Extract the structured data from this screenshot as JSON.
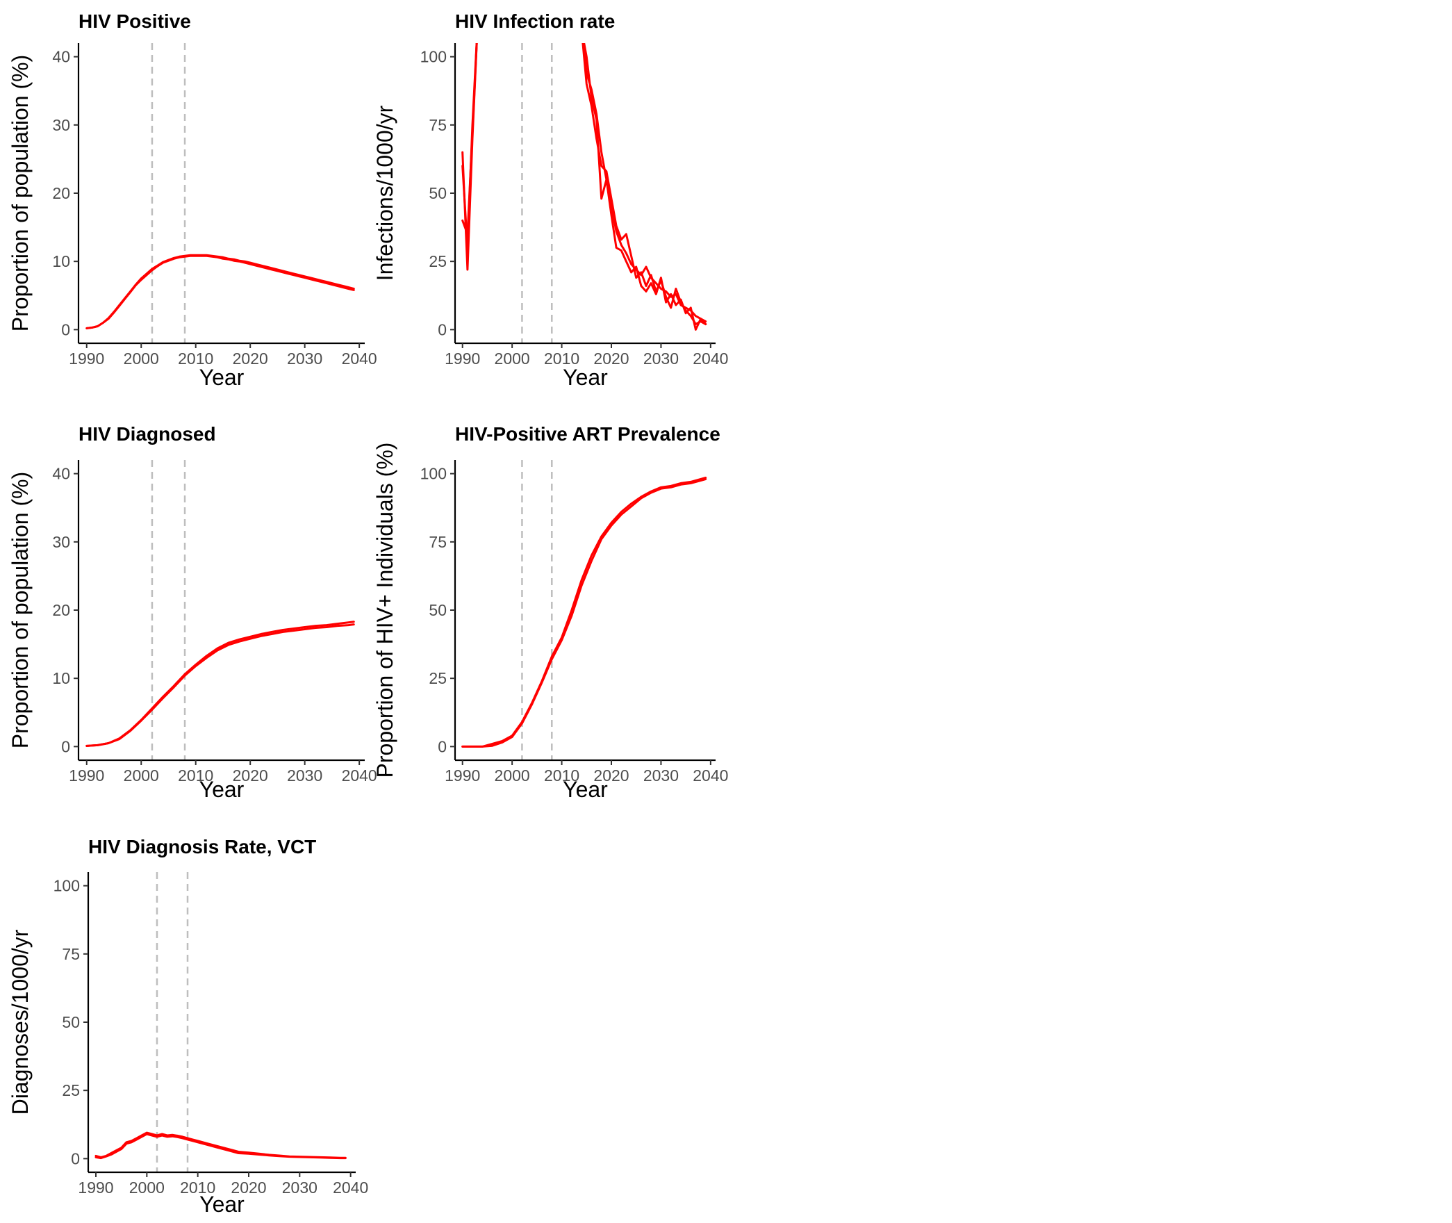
{
  "chart_data": [
    {
      "type": "line",
      "title": "HIV Positive",
      "xlabel": "Year",
      "ylabel": "Proportion of population (%)",
      "xlim": [
        1988.5,
        2041
      ],
      "ylim": [
        -2,
        42
      ],
      "xticks": [
        1990,
        2000,
        2010,
        2020,
        2030,
        2040
      ],
      "yticks": [
        0,
        10,
        20,
        30,
        40
      ],
      "vlines": [
        2002,
        2008
      ],
      "grid": false,
      "legend": "none",
      "color": "#ff0000",
      "series": [
        {
          "x": [
            1990,
            1991,
            1992,
            1993,
            1994,
            1995,
            1996,
            1997,
            1998,
            1999,
            2000,
            2001,
            2002,
            2003,
            2004,
            2005,
            2006,
            2007,
            2008,
            2009,
            2010,
            2011,
            2012,
            2013,
            2014,
            2015,
            2016,
            2017,
            2018,
            2019,
            2020,
            2021,
            2022,
            2023,
            2024,
            2025,
            2026,
            2027,
            2028,
            2029,
            2030,
            2031,
            2032,
            2033,
            2034,
            2035,
            2036,
            2037,
            2038,
            2039
          ],
          "y": [
            0.2,
            0.3,
            0.5,
            1.0,
            1.7,
            2.6,
            3.6,
            4.6,
            5.6,
            6.6,
            7.5,
            8.2,
            8.9,
            9.4,
            9.9,
            10.2,
            10.5,
            10.7,
            10.8,
            10.9,
            10.9,
            10.9,
            10.9,
            10.8,
            10.7,
            10.6,
            10.4,
            10.3,
            10.1,
            10.0,
            9.8,
            9.6,
            9.4,
            9.2,
            9.0,
            8.8,
            8.6,
            8.4,
            8.2,
            8.0,
            7.8,
            7.6,
            7.4,
            7.2,
            7.0,
            6.8,
            6.6,
            6.4,
            6.2,
            6.0
          ]
        },
        {
          "x": [
            1990,
            1991,
            1992,
            1993,
            1994,
            1995,
            1996,
            1997,
            1998,
            1999,
            2000,
            2001,
            2002,
            2003,
            2004,
            2005,
            2006,
            2007,
            2008,
            2009,
            2010,
            2011,
            2012,
            2013,
            2014,
            2015,
            2016,
            2017,
            2018,
            2019,
            2020,
            2021,
            2022,
            2023,
            2024,
            2025,
            2026,
            2027,
            2028,
            2029,
            2030,
            2031,
            2032,
            2033,
            2034,
            2035,
            2036,
            2037,
            2038,
            2039
          ],
          "y": [
            0.2,
            0.3,
            0.5,
            1.0,
            1.6,
            2.5,
            3.5,
            4.5,
            5.5,
            6.5,
            7.3,
            8.0,
            8.7,
            9.3,
            9.8,
            10.1,
            10.4,
            10.6,
            10.7,
            10.8,
            10.8,
            10.8,
            10.8,
            10.7,
            10.6,
            10.4,
            10.3,
            10.1,
            10.0,
            9.8,
            9.6,
            9.4,
            9.2,
            9.0,
            8.8,
            8.6,
            8.4,
            8.2,
            8.0,
            7.8,
            7.6,
            7.4,
            7.2,
            7.0,
            6.8,
            6.6,
            6.4,
            6.2,
            6.0,
            5.8
          ]
        }
      ]
    },
    {
      "type": "line",
      "title": "HIV Infection rate",
      "xlabel": "Year",
      "ylabel": "Infections/1000/yr",
      "xlim": [
        1988.5,
        2041
      ],
      "ylim": [
        -5,
        105
      ],
      "xticks": [
        1990,
        2000,
        2010,
        2020,
        2030,
        2040
      ],
      "yticks": [
        0,
        25,
        50,
        75,
        100
      ],
      "vlines": [
        2002,
        2008
      ],
      "grid": false,
      "legend": "none",
      "color": "#ff0000",
      "series": [
        {
          "x": [
            1990,
            1991,
            1992,
            1993,
            2014,
            2015,
            2016,
            2017,
            2018,
            2019,
            2020,
            2021,
            2022,
            2023,
            2024,
            2025,
            2026,
            2027,
            2028,
            2029,
            2030,
            2031,
            2032,
            2033,
            2034,
            2035,
            2036,
            2037,
            2038,
            2039
          ],
          "y": [
            65,
            22,
            70,
            110,
            110,
            94,
            88,
            79,
            65,
            55,
            45,
            36,
            31,
            28,
            24,
            22,
            20,
            23,
            19,
            17,
            15,
            14,
            12,
            13,
            9,
            8,
            7,
            5,
            4,
            3
          ]
        },
        {
          "x": [
            1990,
            1991,
            1992,
            1993,
            2014,
            2015,
            2016,
            2017,
            2018,
            2019,
            2020,
            2021,
            2022,
            2023,
            2024,
            2025,
            2026,
            2027,
            2028,
            2029,
            2030,
            2031,
            2032,
            2033,
            2034,
            2035,
            2036,
            2037,
            2038,
            2039
          ],
          "y": [
            60,
            30,
            75,
            110,
            110,
            90,
            82,
            70,
            60,
            58,
            48,
            38,
            33,
            35,
            27,
            19,
            21,
            16,
            20,
            14,
            18,
            12,
            8,
            15,
            10,
            7,
            5,
            2,
            3,
            2
          ]
        },
        {
          "x": [
            1990,
            1991,
            1992,
            1993,
            2014,
            2015,
            2016,
            2017,
            2018,
            2019,
            2020,
            2021,
            2022,
            2023,
            2024,
            2025,
            2026,
            2027,
            2028,
            2029,
            2030,
            2031,
            2032,
            2033,
            2034,
            2035,
            2036,
            2037,
            2038,
            2039
          ],
          "y": [
            40,
            35,
            72,
            110,
            110,
            100,
            85,
            77,
            48,
            55,
            42,
            30,
            29,
            25,
            21,
            23,
            16,
            14,
            17,
            13,
            19,
            10,
            13,
            9,
            11,
            6,
            8,
            0,
            4,
            2
          ]
        }
      ]
    },
    {
      "type": "line",
      "title": "HIV Diagnosed",
      "xlabel": "Year",
      "ylabel": "Proportion of population (%)",
      "xlim": [
        1988.5,
        2041
      ],
      "ylim": [
        -2,
        42
      ],
      "xticks": [
        1990,
        2000,
        2010,
        2020,
        2030,
        2040
      ],
      "yticks": [
        0,
        10,
        20,
        30,
        40
      ],
      "vlines": [
        2002,
        2008
      ],
      "grid": false,
      "legend": "none",
      "color": "#ff0000",
      "series": [
        {
          "x": [
            1990,
            1992,
            1994,
            1996,
            1998,
            2000,
            2002,
            2004,
            2006,
            2008,
            2010,
            2012,
            2014,
            2016,
            2018,
            2020,
            2022,
            2024,
            2026,
            2028,
            2030,
            2032,
            2034,
            2036,
            2038,
            2039
          ],
          "y": [
            0.1,
            0.2,
            0.5,
            1.2,
            2.4,
            3.9,
            5.6,
            7.3,
            8.9,
            10.6,
            12.0,
            13.3,
            14.4,
            15.2,
            15.7,
            16.1,
            16.5,
            16.8,
            17.1,
            17.3,
            17.5,
            17.7,
            17.8,
            18.0,
            18.2,
            18.3
          ]
        },
        {
          "x": [
            1990,
            1992,
            1994,
            1996,
            1998,
            2000,
            2002,
            2004,
            2006,
            2008,
            2010,
            2012,
            2014,
            2016,
            2018,
            2020,
            2022,
            2024,
            2026,
            2028,
            2030,
            2032,
            2034,
            2036,
            2038,
            2039
          ],
          "y": [
            0.1,
            0.2,
            0.5,
            1.1,
            2.3,
            3.8,
            5.4,
            7.1,
            8.7,
            10.4,
            11.8,
            13.0,
            14.1,
            14.9,
            15.4,
            15.8,
            16.2,
            16.5,
            16.8,
            17.0,
            17.2,
            17.4,
            17.5,
            17.7,
            17.8,
            17.9
          ]
        }
      ]
    },
    {
      "type": "line",
      "title": "HIV-Positive ART Prevalence",
      "xlabel": "Year",
      "ylabel": "Proportion of HIV+ Individuals (%)",
      "xlim": [
        1988.5,
        2041
      ],
      "ylim": [
        -5,
        105
      ],
      "xticks": [
        1990,
        2000,
        2010,
        2020,
        2030,
        2040
      ],
      "yticks": [
        0,
        25,
        50,
        75,
        100
      ],
      "vlines": [
        2002,
        2008
      ],
      "grid": false,
      "legend": "none",
      "color": "#ff0000",
      "series": [
        {
          "x": [
            1990,
            1992,
            1994,
            1996,
            1998,
            2000,
            2002,
            2004,
            2006,
            2008,
            2010,
            2012,
            2014,
            2016,
            2018,
            2020,
            2022,
            2024,
            2026,
            2028,
            2030,
            2032,
            2034,
            2036,
            2038,
            2039
          ],
          "y": [
            0,
            0,
            0,
            1,
            2,
            4,
            9,
            16,
            24,
            33,
            40,
            50,
            61,
            70,
            77,
            82,
            86,
            89,
            91.5,
            93.5,
            95,
            95.5,
            96.5,
            97,
            98,
            98.5
          ]
        },
        {
          "x": [
            1990,
            1992,
            1994,
            1996,
            1998,
            2000,
            2002,
            2004,
            2006,
            2008,
            2010,
            2012,
            2014,
            2016,
            2018,
            2020,
            2022,
            2024,
            2026,
            2028,
            2030,
            2032,
            2034,
            2036,
            2038,
            2039
          ],
          "y": [
            0,
            0,
            0,
            0.3,
            1.5,
            3.5,
            8.5,
            15.5,
            23.5,
            32,
            39,
            48,
            59,
            68,
            76,
            81,
            85,
            88,
            91,
            93,
            94.5,
            95,
            96,
            96.5,
            97.5,
            98
          ]
        }
      ]
    },
    {
      "type": "line",
      "title": "HIV Diagnosis Rate, VCT",
      "xlabel": "Year",
      "ylabel": "Diagnoses/1000/yr",
      "xlim": [
        1988.5,
        2041
      ],
      "ylim": [
        -5,
        105
      ],
      "xticks": [
        1990,
        2000,
        2010,
        2020,
        2030,
        2040
      ],
      "yticks": [
        0,
        25,
        50,
        75,
        100
      ],
      "vlines": [
        2002,
        2008
      ],
      "grid": false,
      "legend": "none",
      "color": "#ff0000",
      "series": [
        {
          "x": [
            1990,
            1991,
            1992,
            1993,
            1994,
            1995,
            1996,
            1997,
            1998,
            1999,
            2000,
            2001,
            2002,
            2003,
            2004,
            2005,
            2006,
            2007,
            2008,
            2009,
            2010,
            2012,
            2014,
            2016,
            2018,
            2020,
            2022,
            2024,
            2026,
            2028,
            2030,
            2032,
            2034,
            2036,
            2038,
            2039
          ],
          "y": [
            1,
            0.5,
            1,
            2,
            3,
            4,
            6,
            6.5,
            7.5,
            8.5,
            9.5,
            9,
            8.5,
            9,
            8.5,
            8.7,
            8.4,
            8,
            7.5,
            7,
            6.5,
            5.5,
            4.5,
            3.5,
            2.5,
            2.2,
            1.8,
            1.4,
            1.1,
            0.8,
            0.7,
            0.6,
            0.5,
            0.4,
            0.3,
            0.3
          ]
        },
        {
          "x": [
            1990,
            1991,
            1992,
            1993,
            1994,
            1995,
            1996,
            1997,
            1998,
            1999,
            2000,
            2001,
            2002,
            2003,
            2004,
            2005,
            2006,
            2007,
            2008,
            2009,
            2010,
            2012,
            2014,
            2016,
            2018,
            2020,
            2022,
            2024,
            2026,
            2028,
            2030,
            2032,
            2034,
            2036,
            2038,
            2039
          ],
          "y": [
            0.5,
            0.2,
            0.8,
            1.5,
            2.5,
            3.5,
            5.5,
            6,
            7,
            8,
            9,
            8.5,
            8,
            8.5,
            8,
            8.2,
            7.9,
            7.5,
            7,
            6.5,
            6,
            5,
            4,
            3,
            2,
            1.8,
            1.5,
            1.2,
            0.9,
            0.7,
            0.6,
            0.5,
            0.4,
            0.3,
            0.2,
            0.2
          ]
        }
      ]
    }
  ]
}
